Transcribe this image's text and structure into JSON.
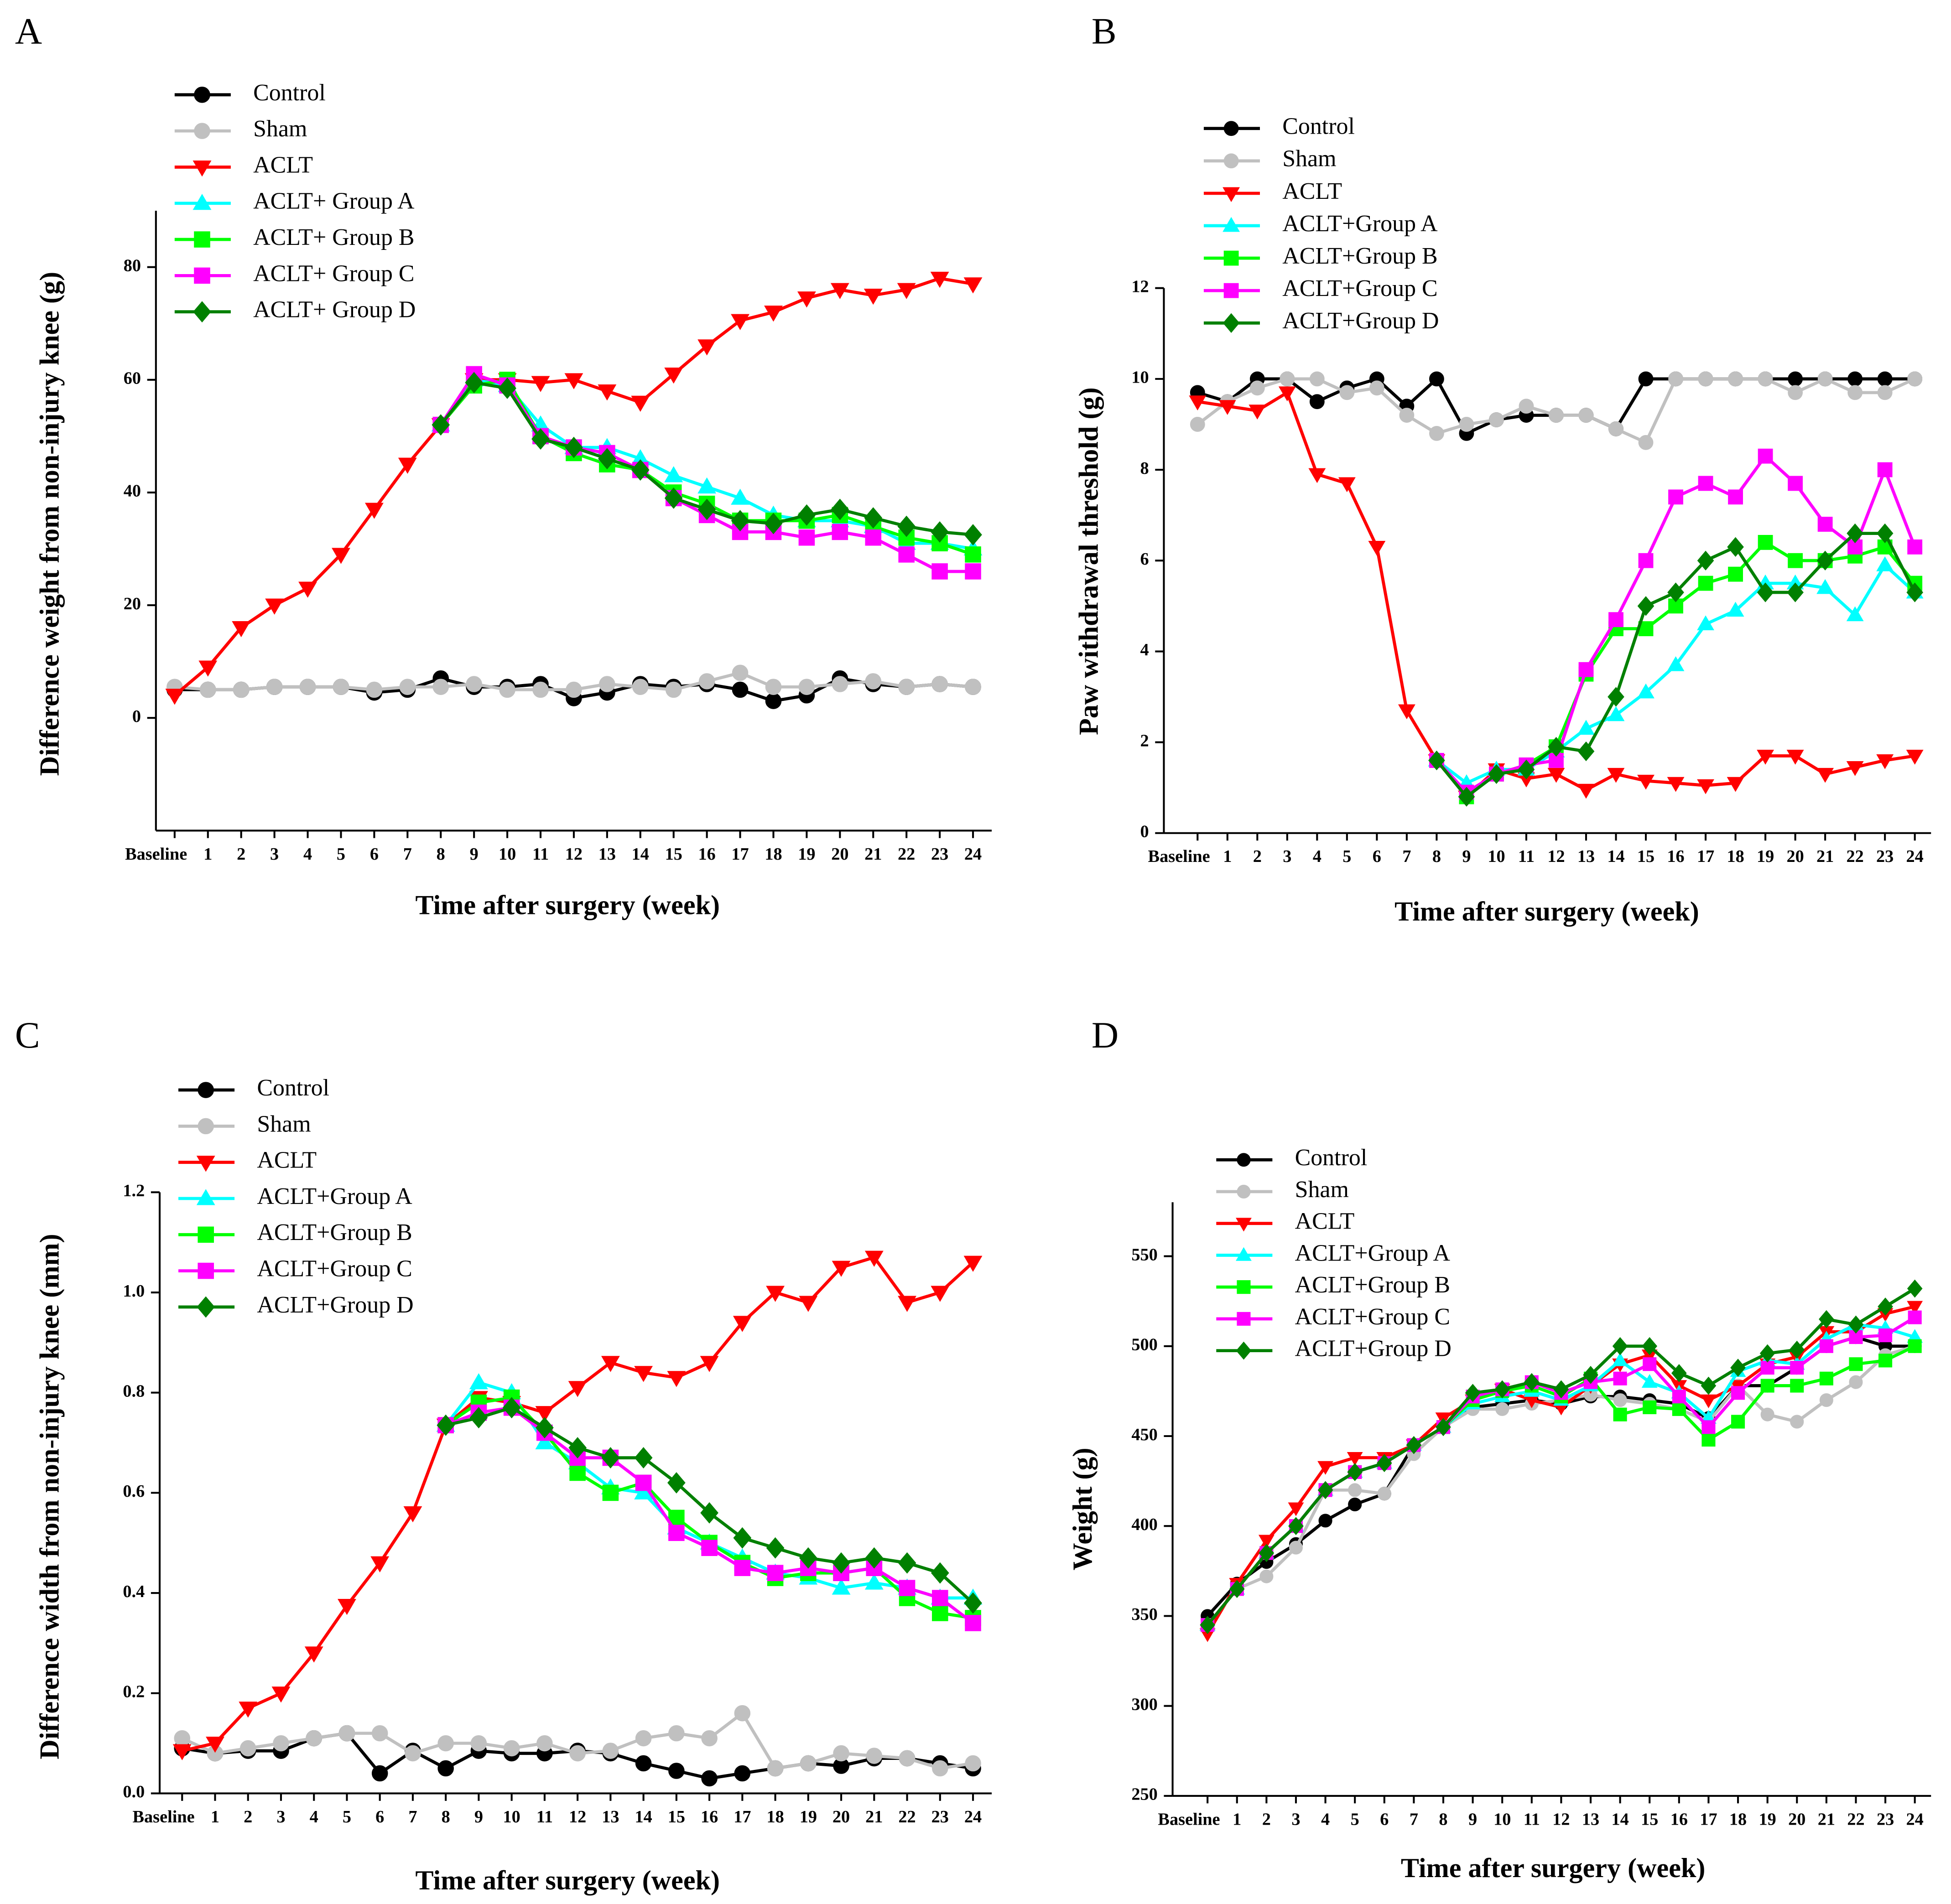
{
  "chart_data": [
    {
      "type": "line",
      "label": "A",
      "x_label": "Time after surgery (week)",
      "y_label": "Difference  weight from non-injury knee (g)",
      "categories": [
        "Baseline",
        "1",
        "2",
        "3",
        "4",
        "5",
        "6",
        "7",
        "8",
        "9",
        "10",
        "11",
        "12",
        "13",
        "14",
        "15",
        "16",
        "17",
        "18",
        "19",
        "20",
        "21",
        "22",
        "23",
        "24"
      ],
      "ylim": [
        -20,
        90
      ],
      "yticks": [
        0,
        20,
        40,
        60,
        80
      ],
      "series": [
        {
          "name": "Control",
          "color": "#000000",
          "marker": "circle",
          "values": [
            5,
            5,
            5,
            5.5,
            5.5,
            5.5,
            4.5,
            5,
            7,
            5.5,
            5.5,
            6,
            3.5,
            4.5,
            6,
            5.5,
            6,
            5,
            3,
            4,
            7,
            6,
            5.5,
            6,
            5.5
          ]
        },
        {
          "name": "Sham",
          "color": "#c0c0c0",
          "marker": "circle",
          "values": [
            5.5,
            5,
            5,
            5.5,
            5.5,
            5.5,
            5,
            5.5,
            5.5,
            6,
            5,
            5,
            5,
            6,
            5.5,
            5,
            6.5,
            8,
            5.5,
            5.5,
            6,
            6.5,
            5.5,
            6,
            5.5
          ]
        },
        {
          "name": "ACLT",
          "color": "#ff0000",
          "marker": "triangle-down",
          "values": [
            4,
            9,
            16,
            20,
            23,
            29,
            37,
            45,
            52,
            60,
            60,
            59.5,
            60,
            58,
            56,
            61,
            66,
            70.5,
            72,
            74.5,
            76,
            75,
            76,
            78,
            77
          ]
        },
        {
          "name": "ACLT+ Group A",
          "color": "#00ffff",
          "marker": "triangle-up",
          "values": [
            null,
            null,
            null,
            null,
            null,
            null,
            null,
            null,
            52,
            60,
            59,
            52,
            48,
            48,
            46,
            43,
            41,
            39,
            36,
            35,
            35,
            34,
            31,
            31,
            30
          ]
        },
        {
          "name": "ACLT+ Group B",
          "color": "#00ff00",
          "marker": "square",
          "values": [
            null,
            null,
            null,
            null,
            null,
            null,
            null,
            null,
            52,
            59,
            60,
            50,
            47,
            45,
            44,
            40,
            38,
            35,
            35,
            35,
            36,
            34,
            32,
            31,
            29
          ]
        },
        {
          "name": "ACLT+ Group C",
          "color": "#ff00ff",
          "marker": "square",
          "values": [
            null,
            null,
            null,
            null,
            null,
            null,
            null,
            null,
            52,
            61,
            59,
            50,
            48,
            47,
            44,
            39,
            36,
            33,
            33,
            32,
            33,
            32,
            29,
            26,
            26
          ]
        },
        {
          "name": "ACLT+ Group D",
          "color": "#008000",
          "marker": "diamond",
          "values": [
            null,
            null,
            null,
            null,
            null,
            null,
            null,
            null,
            52,
            59.5,
            58.5,
            49.5,
            48,
            46,
            44,
            39,
            37,
            35,
            34.5,
            36,
            37,
            35.5,
            34,
            33,
            32.5
          ]
        }
      ]
    },
    {
      "type": "line",
      "label": "B",
      "x_label": "Time after surgery (week)",
      "y_label": "Paw withdrawal threshold (g)",
      "categories": [
        "Baseline",
        "1",
        "2",
        "3",
        "4",
        "5",
        "6",
        "7",
        "8",
        "9",
        "10",
        "11",
        "12",
        "13",
        "14",
        "15",
        "16",
        "17",
        "18",
        "19",
        "20",
        "21",
        "22",
        "23",
        "24"
      ],
      "ylim": [
        0,
        12
      ],
      "yticks": [
        0,
        2,
        4,
        6,
        8,
        10,
        12
      ],
      "series": [
        {
          "name": "Control",
          "color": "#000000",
          "marker": "circle",
          "values": [
            9.7,
            9.5,
            10,
            10,
            9.5,
            9.8,
            10,
            9.4,
            10,
            8.8,
            9.1,
            9.2,
            9.2,
            9.2,
            8.9,
            10,
            10,
            10,
            10,
            10,
            10,
            10,
            10,
            10,
            10
          ]
        },
        {
          "name": "Sham",
          "color": "#c0c0c0",
          "marker": "circle",
          "values": [
            9,
            9.5,
            9.8,
            10,
            10,
            9.7,
            9.8,
            9.2,
            8.8,
            9,
            9.1,
            9.4,
            9.2,
            9.2,
            8.9,
            8.6,
            10,
            10,
            10,
            10,
            9.7,
            10,
            9.7,
            9.7,
            10
          ]
        },
        {
          "name": "ACLT",
          "color": "#ff0000",
          "marker": "triangle-down",
          "values": [
            9.5,
            9.4,
            9.3,
            9.7,
            7.9,
            7.7,
            6.3,
            2.7,
            1.6,
            0.8,
            1.4,
            1.2,
            1.3,
            0.95,
            1.3,
            1.15,
            1.1,
            1.05,
            1.1,
            1.7,
            1.7,
            1.3,
            1.45,
            1.6,
            1.7
          ]
        },
        {
          "name": "ACLT+Group A",
          "color": "#00ffff",
          "marker": "triangle-up",
          "values": [
            null,
            null,
            null,
            null,
            null,
            null,
            null,
            null,
            1.6,
            1.1,
            1.4,
            1.4,
            1.8,
            2.3,
            2.6,
            3.1,
            3.7,
            4.6,
            4.9,
            5.5,
            5.5,
            5.4,
            4.8,
            5.9,
            5.3
          ]
        },
        {
          "name": "ACLT+Group B",
          "color": "#00ff00",
          "marker": "square",
          "values": [
            null,
            null,
            null,
            null,
            null,
            null,
            null,
            null,
            1.6,
            0.8,
            1.3,
            1.5,
            1.9,
            3.5,
            4.5,
            4.5,
            5,
            5.5,
            5.7,
            6.4,
            6,
            6,
            6.1,
            6.3,
            5.5
          ]
        },
        {
          "name": "ACLT+Group C",
          "color": "#ff00ff",
          "marker": "square",
          "values": [
            null,
            null,
            null,
            null,
            null,
            null,
            null,
            null,
            1.6,
            0.9,
            1.3,
            1.5,
            1.6,
            3.6,
            4.7,
            6,
            7.4,
            7.7,
            7.4,
            8.3,
            7.7,
            6.8,
            6.3,
            8,
            6.3
          ]
        },
        {
          "name": "ACLT+Group D",
          "color": "#008000",
          "marker": "diamond",
          "values": [
            null,
            null,
            null,
            null,
            null,
            null,
            null,
            null,
            1.6,
            0.8,
            1.3,
            1.4,
            1.9,
            1.8,
            3,
            5,
            5.3,
            6,
            6.3,
            5.3,
            5.3,
            6,
            6.6,
            6.6,
            5.3
          ]
        }
      ]
    },
    {
      "type": "line",
      "label": "C",
      "x_label": "Time after surgery (week)",
      "y_label": "Difference width from non-injury knee (mm)",
      "categories": [
        "Baseline",
        "1",
        "2",
        "3",
        "4",
        "5",
        "6",
        "7",
        "8",
        "9",
        "10",
        "11",
        "12",
        "13",
        "14",
        "15",
        "16",
        "17",
        "18",
        "19",
        "20",
        "21",
        "22",
        "23",
        "24"
      ],
      "ylim": [
        0,
        1.2
      ],
      "yticks": [
        {
          "value": 0,
          "label": "0.0"
        },
        0.2,
        0.4,
        0.6,
        0.8,
        {
          "value": 1,
          "label": "1.0"
        },
        1.2
      ],
      "series": [
        {
          "name": "Control",
          "color": "#000000",
          "marker": "circle",
          "values": [
            0.09,
            0.08,
            0.085,
            0.085,
            0.11,
            0.12,
            0.04,
            0.085,
            0.05,
            0.085,
            0.08,
            0.08,
            0.085,
            0.08,
            0.06,
            0.045,
            0.03,
            0.04,
            0.05,
            0.06,
            0.055,
            0.07,
            0.07,
            0.06,
            0.05
          ]
        },
        {
          "name": "Sham",
          "color": "#c0c0c0",
          "marker": "circle",
          "values": [
            0.11,
            0.08,
            0.09,
            0.1,
            0.11,
            0.12,
            0.12,
            0.08,
            0.1,
            0.1,
            0.09,
            0.1,
            0.08,
            0.085,
            0.11,
            0.12,
            0.11,
            0.16,
            0.05,
            0.06,
            0.08,
            0.075,
            0.07,
            0.05,
            0.06
          ]
        },
        {
          "name": "ACLT",
          "color": "#ff0000",
          "marker": "triangle-down",
          "values": [
            0.085,
            0.1,
            0.17,
            0.2,
            0.28,
            0.375,
            0.46,
            0.56,
            0.735,
            0.79,
            0.78,
            0.76,
            0.81,
            0.86,
            0.84,
            0.83,
            0.86,
            0.94,
            1.0,
            0.98,
            1.05,
            1.07,
            0.98,
            1.0,
            1.06
          ]
        },
        {
          "name": "ACLT+Group A",
          "color": "#00ffff",
          "marker": "triangle-up",
          "values": [
            null,
            null,
            null,
            null,
            null,
            null,
            null,
            null,
            0.735,
            0.82,
            0.8,
            0.7,
            0.66,
            0.61,
            0.6,
            0.53,
            0.5,
            0.47,
            0.44,
            0.43,
            0.41,
            0.42,
            0.41,
            0.39,
            0.39
          ]
        },
        {
          "name": "ACLT+Group B",
          "color": "#00ff00",
          "marker": "square",
          "values": [
            null,
            null,
            null,
            null,
            null,
            null,
            null,
            null,
            0.735,
            0.78,
            0.79,
            0.72,
            0.64,
            0.6,
            0.62,
            0.55,
            0.5,
            0.46,
            0.43,
            0.44,
            0.44,
            0.45,
            0.39,
            0.36,
            0.35
          ]
        },
        {
          "name": "ACLT+Group C",
          "color": "#ff00ff",
          "marker": "square",
          "values": [
            null,
            null,
            null,
            null,
            null,
            null,
            null,
            null,
            0.735,
            0.76,
            0.77,
            0.72,
            0.67,
            0.67,
            0.62,
            0.52,
            0.49,
            0.45,
            0.44,
            0.45,
            0.44,
            0.45,
            0.41,
            0.39,
            0.34
          ]
        },
        {
          "name": "ACLT+Group D",
          "color": "#008000",
          "marker": "diamond",
          "values": [
            null,
            null,
            null,
            null,
            null,
            null,
            null,
            null,
            0.735,
            0.75,
            0.77,
            0.73,
            0.69,
            0.67,
            0.67,
            0.62,
            0.56,
            0.51,
            0.49,
            0.47,
            0.46,
            0.47,
            0.46,
            0.44,
            0.38
          ]
        }
      ]
    },
    {
      "type": "line",
      "label": "D",
      "x_label": "Time after surgery (week)",
      "y_label": "Weight (g)",
      "categories": [
        "Baseline",
        "1",
        "2",
        "3",
        "4",
        "5",
        "6",
        "7",
        "8",
        "9",
        "10",
        "11",
        "12",
        "13",
        "14",
        "15",
        "16",
        "17",
        "18",
        "19",
        "20",
        "21",
        "22",
        "23",
        "24"
      ],
      "ylim": [
        250,
        580
      ],
      "yticks": [
        250,
        300,
        350,
        400,
        450,
        500,
        550
      ],
      "series": [
        {
          "name": "Control",
          "color": "#000000",
          "marker": "circle",
          "values": [
            350,
            368,
            380,
            390,
            403,
            412,
            418,
            445,
            455,
            466,
            468,
            470,
            468,
            472,
            472,
            470,
            468,
            460,
            478,
            478,
            488,
            500,
            505,
            500,
            500
          ]
        },
        {
          "name": "Sham",
          "color": "#c0c0c0",
          "marker": "circle",
          "values": [
            345,
            365,
            372,
            388,
            420,
            420,
            418,
            440,
            455,
            465,
            465,
            468,
            470,
            473,
            470,
            468,
            465,
            458,
            478,
            462,
            458,
            470,
            480,
            495,
            500
          ]
        },
        {
          "name": "ACLT",
          "color": "#ff0000",
          "marker": "triangle-down",
          "values": [
            340,
            368,
            392,
            410,
            433,
            438,
            438,
            445,
            460,
            470,
            476,
            470,
            466,
            478,
            490,
            495,
            478,
            470,
            478,
            490,
            494,
            508,
            508,
            518,
            522
          ]
        },
        {
          "name": "ACLT+Group A",
          "color": "#00ffff",
          "marker": "triangle-up",
          "values": [
            345,
            365,
            385,
            400,
            420,
            430,
            435,
            445,
            455,
            468,
            472,
            475,
            470,
            478,
            492,
            480,
            474,
            460,
            486,
            492,
            490,
            504,
            512,
            510,
            505
          ]
        },
        {
          "name": "ACLT+Group B",
          "color": "#00ff00",
          "marker": "square",
          "values": [
            345,
            365,
            385,
            400,
            420,
            430,
            435,
            445,
            455,
            470,
            475,
            478,
            472,
            482,
            462,
            466,
            465,
            448,
            458,
            478,
            478,
            482,
            490,
            492,
            500
          ]
        },
        {
          "name": "ACLT+Group C",
          "color": "#ff00ff",
          "marker": "square",
          "values": [
            345,
            365,
            385,
            400,
            420,
            430,
            435,
            445,
            455,
            472,
            476,
            480,
            474,
            480,
            482,
            490,
            472,
            455,
            474,
            488,
            488,
            500,
            505,
            506,
            516
          ]
        },
        {
          "name": "ACLT+Group D",
          "color": "#008000",
          "marker": "diamond",
          "values": [
            345,
            365,
            385,
            400,
            420,
            430,
            435,
            445,
            455,
            474,
            476,
            480,
            476,
            484,
            500,
            500,
            485,
            478,
            488,
            496,
            498,
            515,
            512,
            522,
            532
          ]
        }
      ]
    }
  ]
}
